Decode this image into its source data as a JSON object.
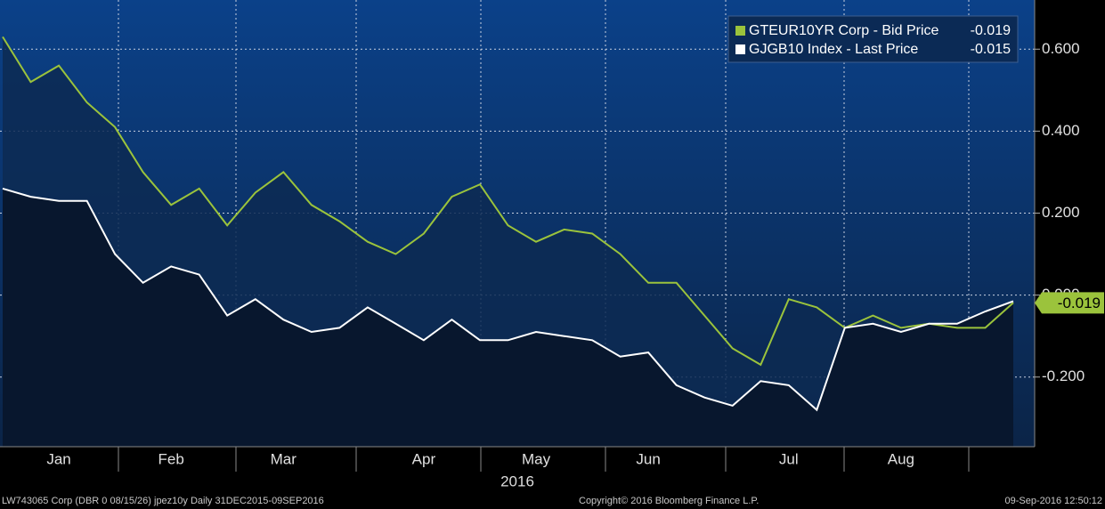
{
  "chart_data": {
    "type": "line",
    "x_label": "2016",
    "categories": [
      null,
      null,
      "Jan",
      null,
      null,
      null,
      "Feb",
      null,
      null,
      null,
      "Mar",
      null,
      null,
      null,
      null,
      "Apr",
      null,
      null,
      null,
      "May",
      null,
      null,
      null,
      "Jun",
      null,
      null,
      null,
      null,
      "Jul",
      null,
      null,
      null,
      "Aug",
      null,
      null,
      null,
      null
    ],
    "series": [
      {
        "name": "GTEUR10YR Corp - Bid Price",
        "color": "#9bc33c",
        "values": [
          0.63,
          0.52,
          0.56,
          0.47,
          0.41,
          0.3,
          0.22,
          0.26,
          0.17,
          0.25,
          0.3,
          0.22,
          0.18,
          0.13,
          0.1,
          0.15,
          0.24,
          0.27,
          0.17,
          0.13,
          0.16,
          0.15,
          0.1,
          0.03,
          0.03,
          -0.05,
          -0.13,
          -0.17,
          -0.01,
          -0.03,
          -0.08,
          -0.05,
          -0.08,
          -0.07,
          -0.08,
          -0.08,
          -0.019
        ]
      },
      {
        "name": "GJGB10 Index - Last Price",
        "color": "#ffffff",
        "values": [
          0.26,
          0.24,
          0.23,
          0.23,
          0.1,
          0.03,
          0.07,
          0.05,
          -0.05,
          -0.01,
          -0.06,
          -0.09,
          -0.08,
          -0.03,
          -0.07,
          -0.11,
          -0.06,
          -0.11,
          -0.11,
          -0.09,
          -0.1,
          -0.11,
          -0.15,
          -0.14,
          -0.22,
          -0.25,
          -0.27,
          -0.21,
          -0.22,
          -0.28,
          -0.08,
          -0.07,
          -0.09,
          -0.07,
          -0.07,
          -0.04,
          -0.015
        ]
      }
    ],
    "ylim": [
      -0.37,
      0.72
    ],
    "yticks": [
      {
        "value": -0.2,
        "label": "-0.200"
      },
      {
        "value": 0,
        "label": "0.000"
      },
      {
        "value": 0.2,
        "label": "0.200"
      },
      {
        "value": 0.4,
        "label": "0.400"
      },
      {
        "value": 0.6,
        "label": "0.600"
      }
    ],
    "grid": true,
    "legend": "top-right"
  },
  "footer": {
    "left": "LW743065 Corp (DBR 0 08/15/26) jpez10y  Daily 31DEC2015-09SEP2016",
    "center": "Copyright© 2016 Bloomberg Finance L.P.",
    "right": "09-Sep-2016 12:50:12"
  }
}
